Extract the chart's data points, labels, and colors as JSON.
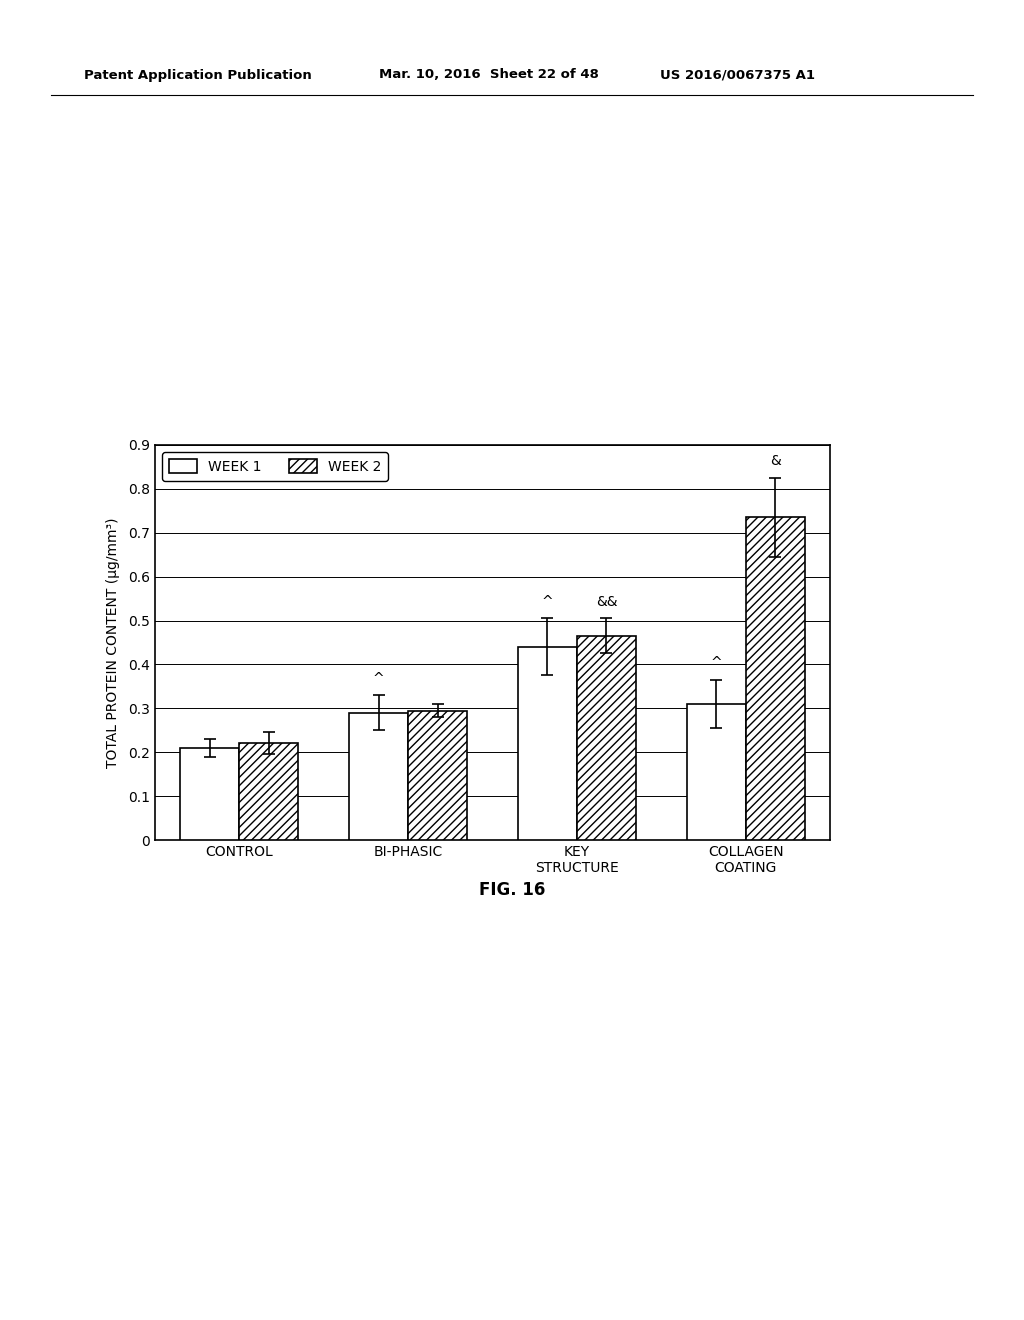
{
  "categories": [
    "CONTROL",
    "BI-PHASIC",
    "KEY\nSTRUCTURE",
    "COLLAGEN\nCOATING"
  ],
  "week1_values": [
    0.21,
    0.29,
    0.44,
    0.31
  ],
  "week2_values": [
    0.22,
    0.295,
    0.465,
    0.735
  ],
  "week1_errors": [
    0.02,
    0.04,
    0.065,
    0.055
  ],
  "week2_errors": [
    0.025,
    0.015,
    0.04,
    0.09
  ],
  "annotations_week1": [
    "",
    "^",
    "^",
    "^"
  ],
  "annotations_week2": [
    "",
    "",
    "&&",
    "&"
  ],
  "ylabel": "TOTAL PROTEIN CONTENT (μg/mm³)",
  "ylim": [
    0,
    0.9
  ],
  "yticks": [
    0,
    0.1,
    0.2,
    0.3,
    0.4,
    0.5,
    0.6,
    0.7,
    0.8,
    0.9
  ],
  "legend_week1": "WEEK 1",
  "legend_week2": "WEEK 2",
  "fig_label": "FIG. 16",
  "header_left": "Patent Application Publication",
  "header_mid": "Mar. 10, 2016  Sheet 22 of 48",
  "header_right": "US 2016/0067375 A1",
  "bar_width": 0.35,
  "bar_color_week1": "#ffffff",
  "bar_color_week2": "#ffffff",
  "bar_edge_color": "#000000",
  "hatch_week2": "////",
  "background_color": "#ffffff"
}
